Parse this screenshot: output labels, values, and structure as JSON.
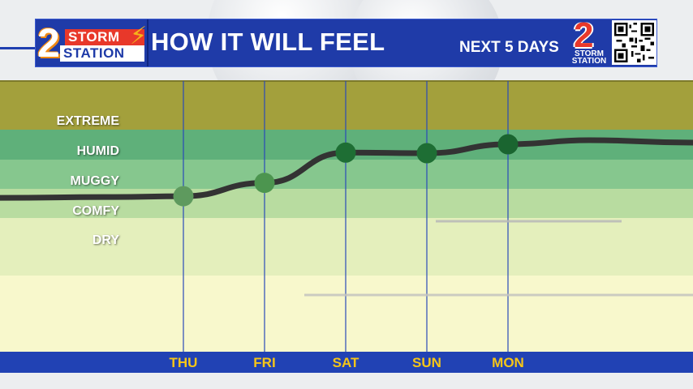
{
  "header": {
    "logo_line1": "STORM",
    "logo_line2": "STATION",
    "logo_number": "2",
    "title": "HOW IT WILL FEEL",
    "subtitle": "NEXT 5 DAYS",
    "badge_number": "2",
    "badge_line1": "STORM",
    "badge_line2": "STATION"
  },
  "colors": {
    "header_bg": "#1f3ba8",
    "day_label": "#f5c518",
    "curve": "#333333",
    "point_low": "#5e9a5e",
    "point_high": "#1e6e34"
  },
  "chart_data": {
    "type": "line",
    "title": "HOW IT WILL FEEL",
    "subtitle": "NEXT 5 DAYS",
    "categories": [
      "THU",
      "FRI",
      "SAT",
      "SUN",
      "MON"
    ],
    "levels": [
      "EXTREME",
      "HUMID",
      "MUGGY",
      "COMFY",
      "DRY"
    ],
    "level_values": [
      5,
      4,
      3,
      2,
      1
    ],
    "series": [
      {
        "values": [
          2.5,
          2.95,
          3.97,
          3.95,
          4.25
        ]
      }
    ],
    "ylim": [
      0,
      6
    ],
    "grid": true,
    "legend": "none"
  }
}
